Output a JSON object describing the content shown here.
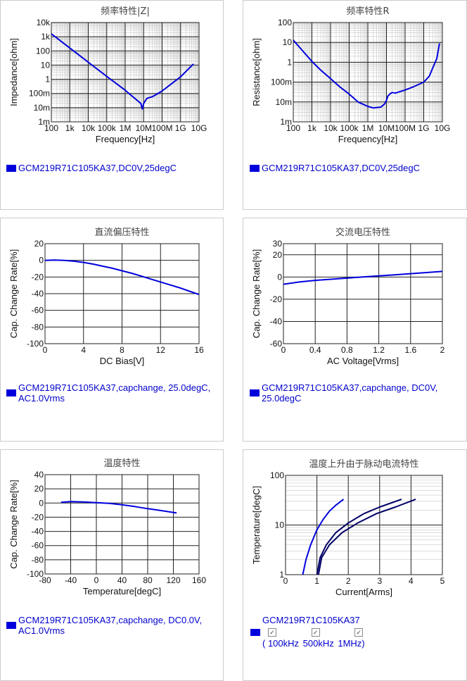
{
  "chart_data": [
    {
      "id": "z",
      "type": "line",
      "title": "频率特性|Z|",
      "xlabel": "Frequency[Hz]",
      "ylabel": "Impedance[ohm]",
      "xscale": "log",
      "yscale": "log",
      "xlim": [
        100,
        10000000000
      ],
      "ylim": [
        0.001,
        10000
      ],
      "xticks": [
        100,
        1000,
        10000,
        100000,
        1000000,
        10000000,
        100000000,
        1000000000,
        10000000000
      ],
      "xticklabels": [
        "100",
        "1k",
        "10k",
        "100k",
        "1M",
        "10M",
        "100M",
        "1G",
        "10G"
      ],
      "yticks": [
        0.001,
        0.01,
        0.1,
        1,
        10,
        100,
        1000,
        10000
      ],
      "yticklabels": [
        "1m",
        "10m",
        "100m",
        "1",
        "10",
        "100",
        "1k",
        "10k"
      ],
      "grid": true,
      "series": [
        {
          "color": "#0000dd",
          "x": [
            100,
            1000,
            10000,
            100000,
            1000000,
            3000000,
            7000000,
            8500000,
            10000000,
            15000000,
            30000000,
            100000000,
            1000000000,
            5000000000
          ],
          "y": [
            1600,
            160,
            16,
            1.6,
            0.17,
            0.05,
            0.02,
            0.008,
            0.02,
            0.045,
            0.06,
            0.15,
            1.5,
            12
          ]
        }
      ],
      "legend": "GCM219R71C105KA37,DC0V,25degC"
    },
    {
      "id": "r",
      "type": "line",
      "title": "频率特性R",
      "xlabel": "Frequency[Hz]",
      "ylabel": "Resistance[ohm]",
      "xscale": "log",
      "yscale": "log",
      "xlim": [
        100,
        10000000000
      ],
      "ylim": [
        0.001,
        100
      ],
      "xticks": [
        100,
        1000,
        10000,
        100000,
        1000000,
        10000000,
        100000000,
        1000000000,
        10000000000
      ],
      "xticklabels": [
        "100",
        "1k",
        "10k",
        "100k",
        "1M",
        "10M",
        "100M",
        "1G",
        "10G"
      ],
      "yticks": [
        0.001,
        0.01,
        0.1,
        1,
        10,
        100
      ],
      "yticklabels": [
        "1m",
        "10m",
        "100m",
        "1",
        "10",
        "100"
      ],
      "grid": true,
      "series": [
        {
          "color": "#0000dd",
          "x": [
            100,
            300,
            1000,
            3000,
            10000,
            30000,
            100000,
            300000,
            1000000,
            2000000,
            5000000,
            8000000,
            10000000,
            12000000,
            15000000,
            20000000,
            30000000,
            100000000,
            300000000,
            1000000000,
            2000000000,
            3000000000,
            5000000000,
            7000000000
          ],
          "y": [
            13,
            4,
            1.1,
            0.4,
            0.15,
            0.06,
            0.025,
            0.01,
            0.006,
            0.005,
            0.0055,
            0.008,
            0.012,
            0.02,
            0.025,
            0.03,
            0.028,
            0.04,
            0.06,
            0.1,
            0.2,
            0.5,
            1.5,
            9
          ]
        }
      ],
      "legend": "GCM219R71C105KA37,DC0V,25degC"
    },
    {
      "id": "dc",
      "type": "line",
      "title": "直流偏压特性",
      "xlabel": "DC Bias[V]",
      "ylabel": "Cap. Change Rate[%]",
      "xscale": "linear",
      "yscale": "linear",
      "xlim": [
        0,
        16
      ],
      "ylim": [
        -100,
        20
      ],
      "xticks": [
        0,
        4,
        8,
        12,
        16
      ],
      "xticklabels": [
        "0",
        "4",
        "8",
        "12",
        "16"
      ],
      "yticks": [
        20,
        0,
        -20,
        -40,
        -60,
        -80,
        -100
      ],
      "yticklabels": [
        "20",
        "0",
        "-20",
        "-40",
        "-60",
        "-80",
        "-100"
      ],
      "grid": true,
      "series": [
        {
          "color": "#0000dd",
          "x": [
            0,
            1,
            2,
            3,
            4,
            5,
            6,
            7,
            8,
            9,
            10,
            11,
            12,
            13,
            14,
            15,
            16
          ],
          "y": [
            0,
            0.3,
            0,
            -1,
            -2.5,
            -4.5,
            -7,
            -9.5,
            -12.5,
            -15.5,
            -19,
            -22.5,
            -26,
            -29.5,
            -33,
            -37,
            -41
          ]
        }
      ],
      "legend": "GCM219R71C105KA37,capchange, 25.0degC, AC1.0Vrms"
    },
    {
      "id": "ac",
      "type": "line",
      "title": "交流电压特性",
      "xlabel": "AC Voltage[Vrms]",
      "ylabel": "Cap. Change Rate[%]",
      "xscale": "linear",
      "yscale": "linear",
      "xlim": [
        0,
        2
      ],
      "ylim": [
        -60,
        30
      ],
      "xticks": [
        0,
        0.4,
        0.8,
        1.2,
        1.6,
        2
      ],
      "xticklabels": [
        "0",
        "0.4",
        "0.8",
        "1.2",
        "1.6",
        "2"
      ],
      "yticks": [
        30,
        20,
        0,
        -20,
        -40,
        -60
      ],
      "yticklabels": [
        "30",
        "20",
        "0",
        "-20",
        "-40",
        "-60"
      ],
      "grid": true,
      "series": [
        {
          "color": "#0000dd",
          "x": [
            0,
            0.2,
            0.4,
            0.6,
            0.8,
            1.0,
            1.2,
            1.4,
            1.6,
            1.8,
            2.0
          ],
          "y": [
            -6.5,
            -4.5,
            -3,
            -2,
            -1,
            0,
            1,
            2,
            3,
            4,
            5
          ]
        }
      ],
      "legend": "GCM219R71C105KA37,capchange, DC0V, 25.0degC"
    },
    {
      "id": "temp",
      "type": "line",
      "title": "温度特性",
      "xlabel": "Temperature[degC]",
      "ylabel": "Cap. Change Rate[%]",
      "xscale": "linear",
      "yscale": "linear",
      "xlim": [
        -80,
        160
      ],
      "ylim": [
        -100,
        40
      ],
      "xticks": [
        -80,
        -40,
        0,
        40,
        80,
        120,
        160
      ],
      "xticklabels": [
        "-80",
        "-40",
        "0",
        "40",
        "80",
        "120",
        "160"
      ],
      "yticks": [
        40,
        20,
        0,
        -20,
        -40,
        -60,
        -80,
        -100
      ],
      "yticklabels": [
        "40",
        "20",
        "0",
        "-20",
        "-40",
        "-60",
        "-80",
        "-100"
      ],
      "grid": true,
      "series": [
        {
          "color": "#0000dd",
          "x": [
            -55,
            -40,
            -20,
            0,
            20,
            40,
            60,
            80,
            100,
            125
          ],
          "y": [
            1,
            2,
            1.5,
            0.5,
            -0.5,
            -2.5,
            -5,
            -8,
            -10.5,
            -14
          ]
        }
      ],
      "legend": "GCM219R71C105KA37,capchange, DC0.0V, AC1.0Vrms"
    },
    {
      "id": "ripple",
      "type": "line",
      "title": "温度上升由于脉动电流特性",
      "xlabel": "Current[Arms]",
      "ylabel": "Temperature[degC]",
      "xscale": "linear",
      "yscale": "log",
      "xlim": [
        0,
        5
      ],
      "ylim": [
        1,
        100
      ],
      "xticks": [
        0,
        1,
        2,
        3,
        4,
        5
      ],
      "xticklabels": [
        "0",
        "1",
        "2",
        "3",
        "4",
        "5"
      ],
      "yticks": [
        1,
        10,
        100
      ],
      "yticklabels": [
        "1",
        "10",
        "100"
      ],
      "grid": true,
      "series": [
        {
          "color": "#0000dd",
          "x": [
            0.55,
            0.65,
            0.8,
            1.0,
            1.2,
            1.4,
            1.6,
            1.85
          ],
          "y": [
            1,
            2,
            4,
            8,
            13,
            19,
            25,
            33
          ]
        },
        {
          "color": "#000066",
          "x": [
            1.0,
            1.1,
            1.3,
            1.6,
            2.0,
            2.5,
            3.0,
            3.7
          ],
          "y": [
            1,
            2.2,
            4,
            7,
            11,
            17,
            23,
            33
          ]
        },
        {
          "color": "#000066",
          "x": [
            1.05,
            1.15,
            1.4,
            1.8,
            2.3,
            2.9,
            3.5,
            4.15
          ],
          "y": [
            1,
            2.2,
            4,
            7,
            11,
            17,
            23,
            33
          ]
        }
      ],
      "legend": "GCM219R71C105KA37",
      "options": [
        "( 100kHz",
        "500kHz",
        "1MHz)"
      ]
    }
  ]
}
